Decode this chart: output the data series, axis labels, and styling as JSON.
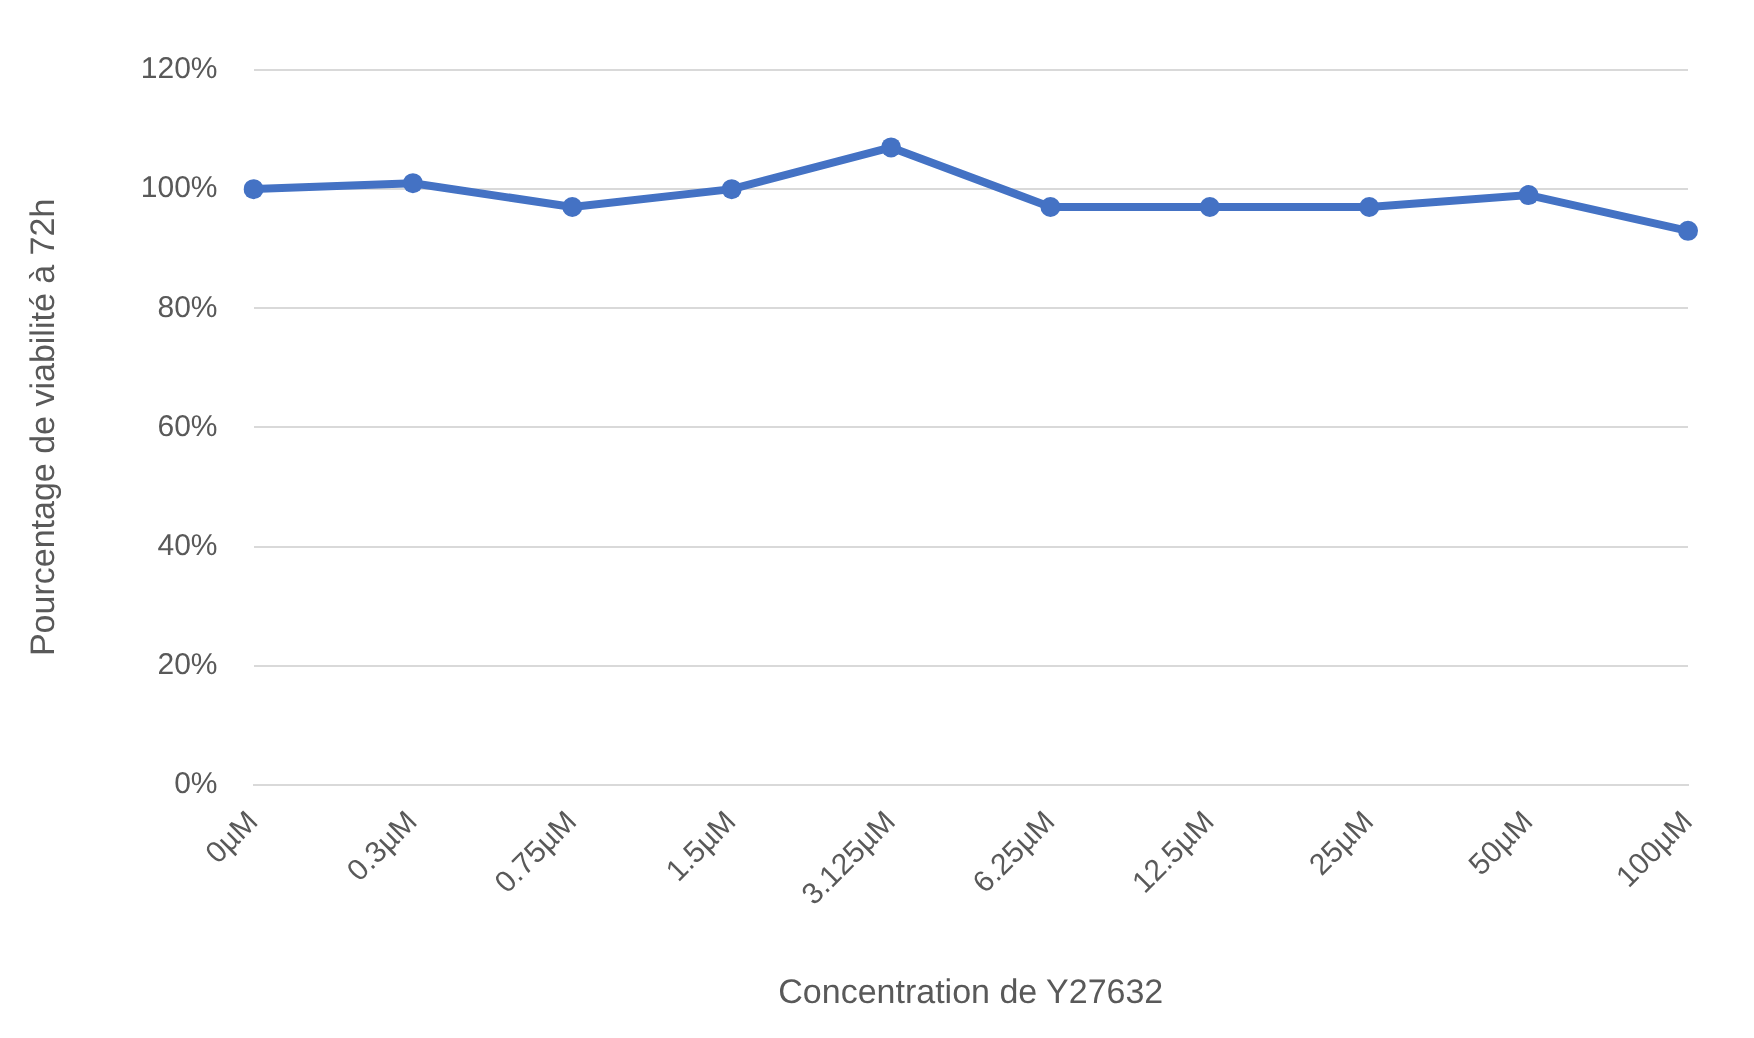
{
  "chart_data": {
    "type": "line",
    "xlabel": "Concentration de Y27632",
    "ylabel": "Pourcentage de viabilité à 72h",
    "categories": [
      "0µM",
      "0.3µM",
      "0.75µM",
      "1.5µM",
      "3.125µM",
      "6.25µM",
      "12.5µM",
      "25µM",
      "50µM",
      "100µM"
    ],
    "series": [
      {
        "color": "#4472c4",
        "values": [
          100,
          101,
          97,
          100,
          107,
          97,
          97,
          97,
          99,
          93
        ]
      }
    ],
    "ylim": [
      0,
      120
    ],
    "yticks": [
      {
        "value": 0,
        "label": "0%"
      },
      {
        "value": 20,
        "label": "20%"
      },
      {
        "value": 40,
        "label": "40%"
      },
      {
        "value": 60,
        "label": "60%"
      },
      {
        "value": 80,
        "label": "80%"
      },
      {
        "value": 100,
        "label": "100%"
      },
      {
        "value": 120,
        "label": "120%"
      }
    ],
    "grid": "y",
    "marker": "circle",
    "line_style": "solid",
    "legend": false
  }
}
